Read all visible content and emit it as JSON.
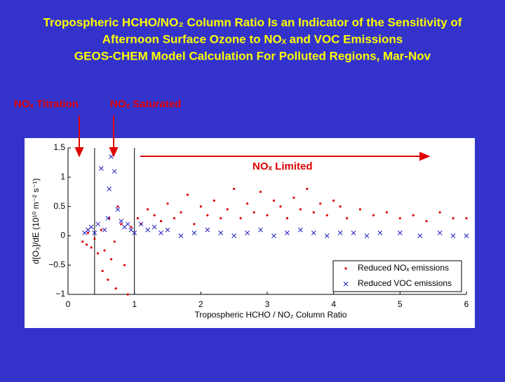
{
  "header": {
    "title_lines": [
      "Tropospheric HCHO/NO₂ Column Ratio Is an Indicator of the Sensitivity of",
      "Afternoon Surface Ozone to NOₓ and VOC Emissions",
      "GEOS-CHEM Model Calculation For Polluted Regions, Mar-Nov"
    ]
  },
  "annotations": {
    "titration": "NOₓ Titration",
    "saturated": "NOₓ Saturated",
    "limited": "NOₓ Limited"
  },
  "chart_data": {
    "type": "scatter",
    "x_label": "Tropospheric HCHO / NO₂ Column Ratio",
    "y_label": "d[O₃]/dE (10¹⁰ m⁻² s⁻¹)",
    "xlim": [
      0,
      6
    ],
    "ylim": [
      -1,
      1.5
    ],
    "xticks": [
      0,
      1,
      2,
      3,
      4,
      5,
      6
    ],
    "yticks": [
      {
        "value": -1,
        "label": "−1"
      },
      {
        "value": -0.5,
        "label": "−0.5"
      },
      0,
      0.5,
      1,
      1.5
    ],
    "vlines": [
      0.4,
      1
    ],
    "legend": "lower right",
    "series": [
      {
        "name": "Reduced NOₓ emissions",
        "color": "#e00000",
        "marker": "dot",
        "x": [
          0.22,
          0.28,
          0.3,
          0.35,
          0.4,
          0.45,
          0.5,
          0.52,
          0.55,
          0.6,
          0.62,
          0.65,
          0.7,
          0.72,
          0.75,
          0.8,
          0.85,
          0.9,
          0.95,
          1.05,
          1.1,
          1.2,
          1.3,
          1.4,
          1.5,
          1.6,
          1.7,
          1.8,
          1.9,
          2.0,
          2.1,
          2.2,
          2.3,
          2.4,
          2.5,
          2.6,
          2.7,
          2.8,
          2.9,
          3.0,
          3.1,
          3.2,
          3.3,
          3.4,
          3.5,
          3.6,
          3.7,
          3.8,
          3.9,
          4.0,
          4.1,
          4.2,
          4.4,
          4.6,
          4.8,
          5.0,
          5.2,
          5.4,
          5.6,
          5.8,
          6.0
        ],
        "values": [
          -0.1,
          -0.15,
          0.05,
          -0.2,
          -0.05,
          -0.3,
          0.1,
          -0.6,
          -0.25,
          -0.75,
          0.3,
          -0.4,
          -0.1,
          -0.9,
          0.5,
          0.2,
          -0.5,
          -1,
          0.15,
          0.3,
          0.2,
          0.45,
          0.35,
          0.25,
          0.55,
          0.3,
          0.4,
          0.7,
          0.2,
          0.5,
          0.35,
          0.6,
          0.3,
          0.45,
          0.8,
          0.3,
          0.55,
          0.4,
          0.75,
          0.35,
          0.6,
          0.5,
          0.3,
          0.65,
          0.45,
          0.8,
          0.4,
          0.55,
          0.35,
          0.6,
          0.5,
          0.3,
          0.45,
          0.35,
          0.4,
          0.3,
          0.35,
          0.25,
          0.4,
          0.3,
          0.3
        ]
      },
      {
        "name": "Reduced VOC emissions",
        "color": "#2020c0",
        "marker": "x",
        "x": [
          0.25,
          0.3,
          0.35,
          0.4,
          0.45,
          0.5,
          0.55,
          0.6,
          0.62,
          0.65,
          0.7,
          0.75,
          0.8,
          0.85,
          0.9,
          0.95,
          1.0,
          1.1,
          1.2,
          1.3,
          1.4,
          1.5,
          1.7,
          1.9,
          2.1,
          2.3,
          2.5,
          2.7,
          2.9,
          3.1,
          3.3,
          3.5,
          3.7,
          3.9,
          4.1,
          4.3,
          4.5,
          4.7,
          5.0,
          5.3,
          5.6,
          5.8,
          6.0
        ],
        "values": [
          0.05,
          0.1,
          0.15,
          0.05,
          0.2,
          1.15,
          0.1,
          0.3,
          0.8,
          1.35,
          1.1,
          0.45,
          0.25,
          0.15,
          0.2,
          0.1,
          0.05,
          0.2,
          0.1,
          0.15,
          0.05,
          0.1,
          0,
          0.05,
          0.1,
          0.05,
          0,
          0.05,
          0.1,
          0,
          0.05,
          0.1,
          0.05,
          0,
          0.05,
          0.05,
          0,
          0.05,
          0.05,
          0,
          0.05,
          0,
          0
        ]
      }
    ]
  }
}
